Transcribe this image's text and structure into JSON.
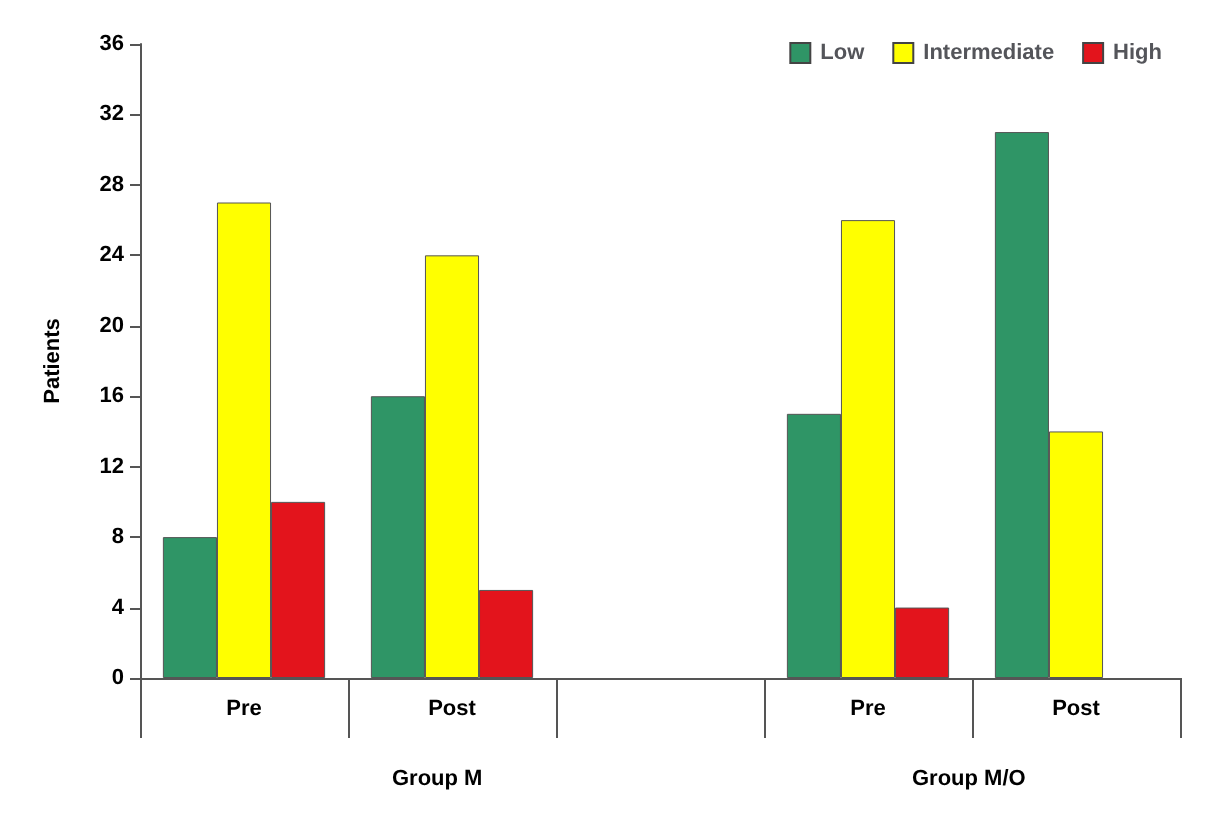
{
  "chart_data": {
    "type": "bar",
    "ylabel": "Patients",
    "categories": [
      "Pre",
      "Post",
      null,
      "Pre",
      "Post"
    ],
    "series": [
      {
        "name": "Low",
        "color": "#2f9566",
        "values": [
          8,
          16,
          null,
          15,
          31
        ]
      },
      {
        "name": "Intermediate",
        "color": "#ffff00",
        "values": [
          27,
          24,
          null,
          26,
          14
        ]
      },
      {
        "name": "High",
        "color": "#e3141c",
        "values": [
          10,
          5,
          null,
          4,
          null
        ]
      }
    ],
    "ylim": [
      0,
      36
    ],
    "yticks": [
      0,
      4,
      8,
      12,
      16,
      20,
      24,
      28,
      32,
      36
    ],
    "grid": false,
    "legend": "top right",
    "annotations": [
      "Group M",
      "Group M/O"
    ]
  }
}
